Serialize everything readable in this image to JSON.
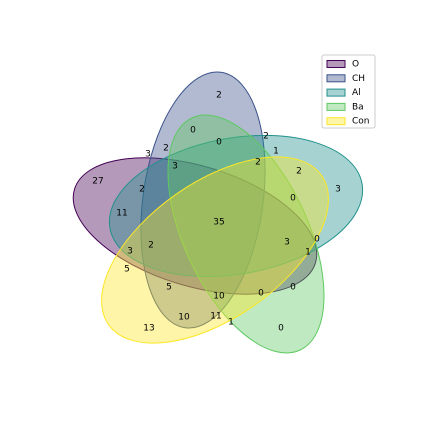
{
  "chart_data": {
    "type": "venn",
    "series": [
      {
        "name": "O",
        "color": "#440154"
      },
      {
        "name": "CH",
        "color": "#3b528b"
      },
      {
        "name": "Al",
        "color": "#21918c"
      },
      {
        "name": "Ba",
        "color": "#5ec962"
      },
      {
        "name": "Con",
        "color": "#fde725"
      }
    ],
    "values": [
      2,
      0,
      0,
      2,
      1,
      3,
      2,
      3,
      2,
      2,
      27,
      2,
      3,
      0,
      11,
      35,
      3,
      0,
      2,
      3,
      1,
      5,
      5,
      0,
      10,
      0,
      10,
      11,
      1,
      13,
      0
    ],
    "legend": "upper right"
  }
}
